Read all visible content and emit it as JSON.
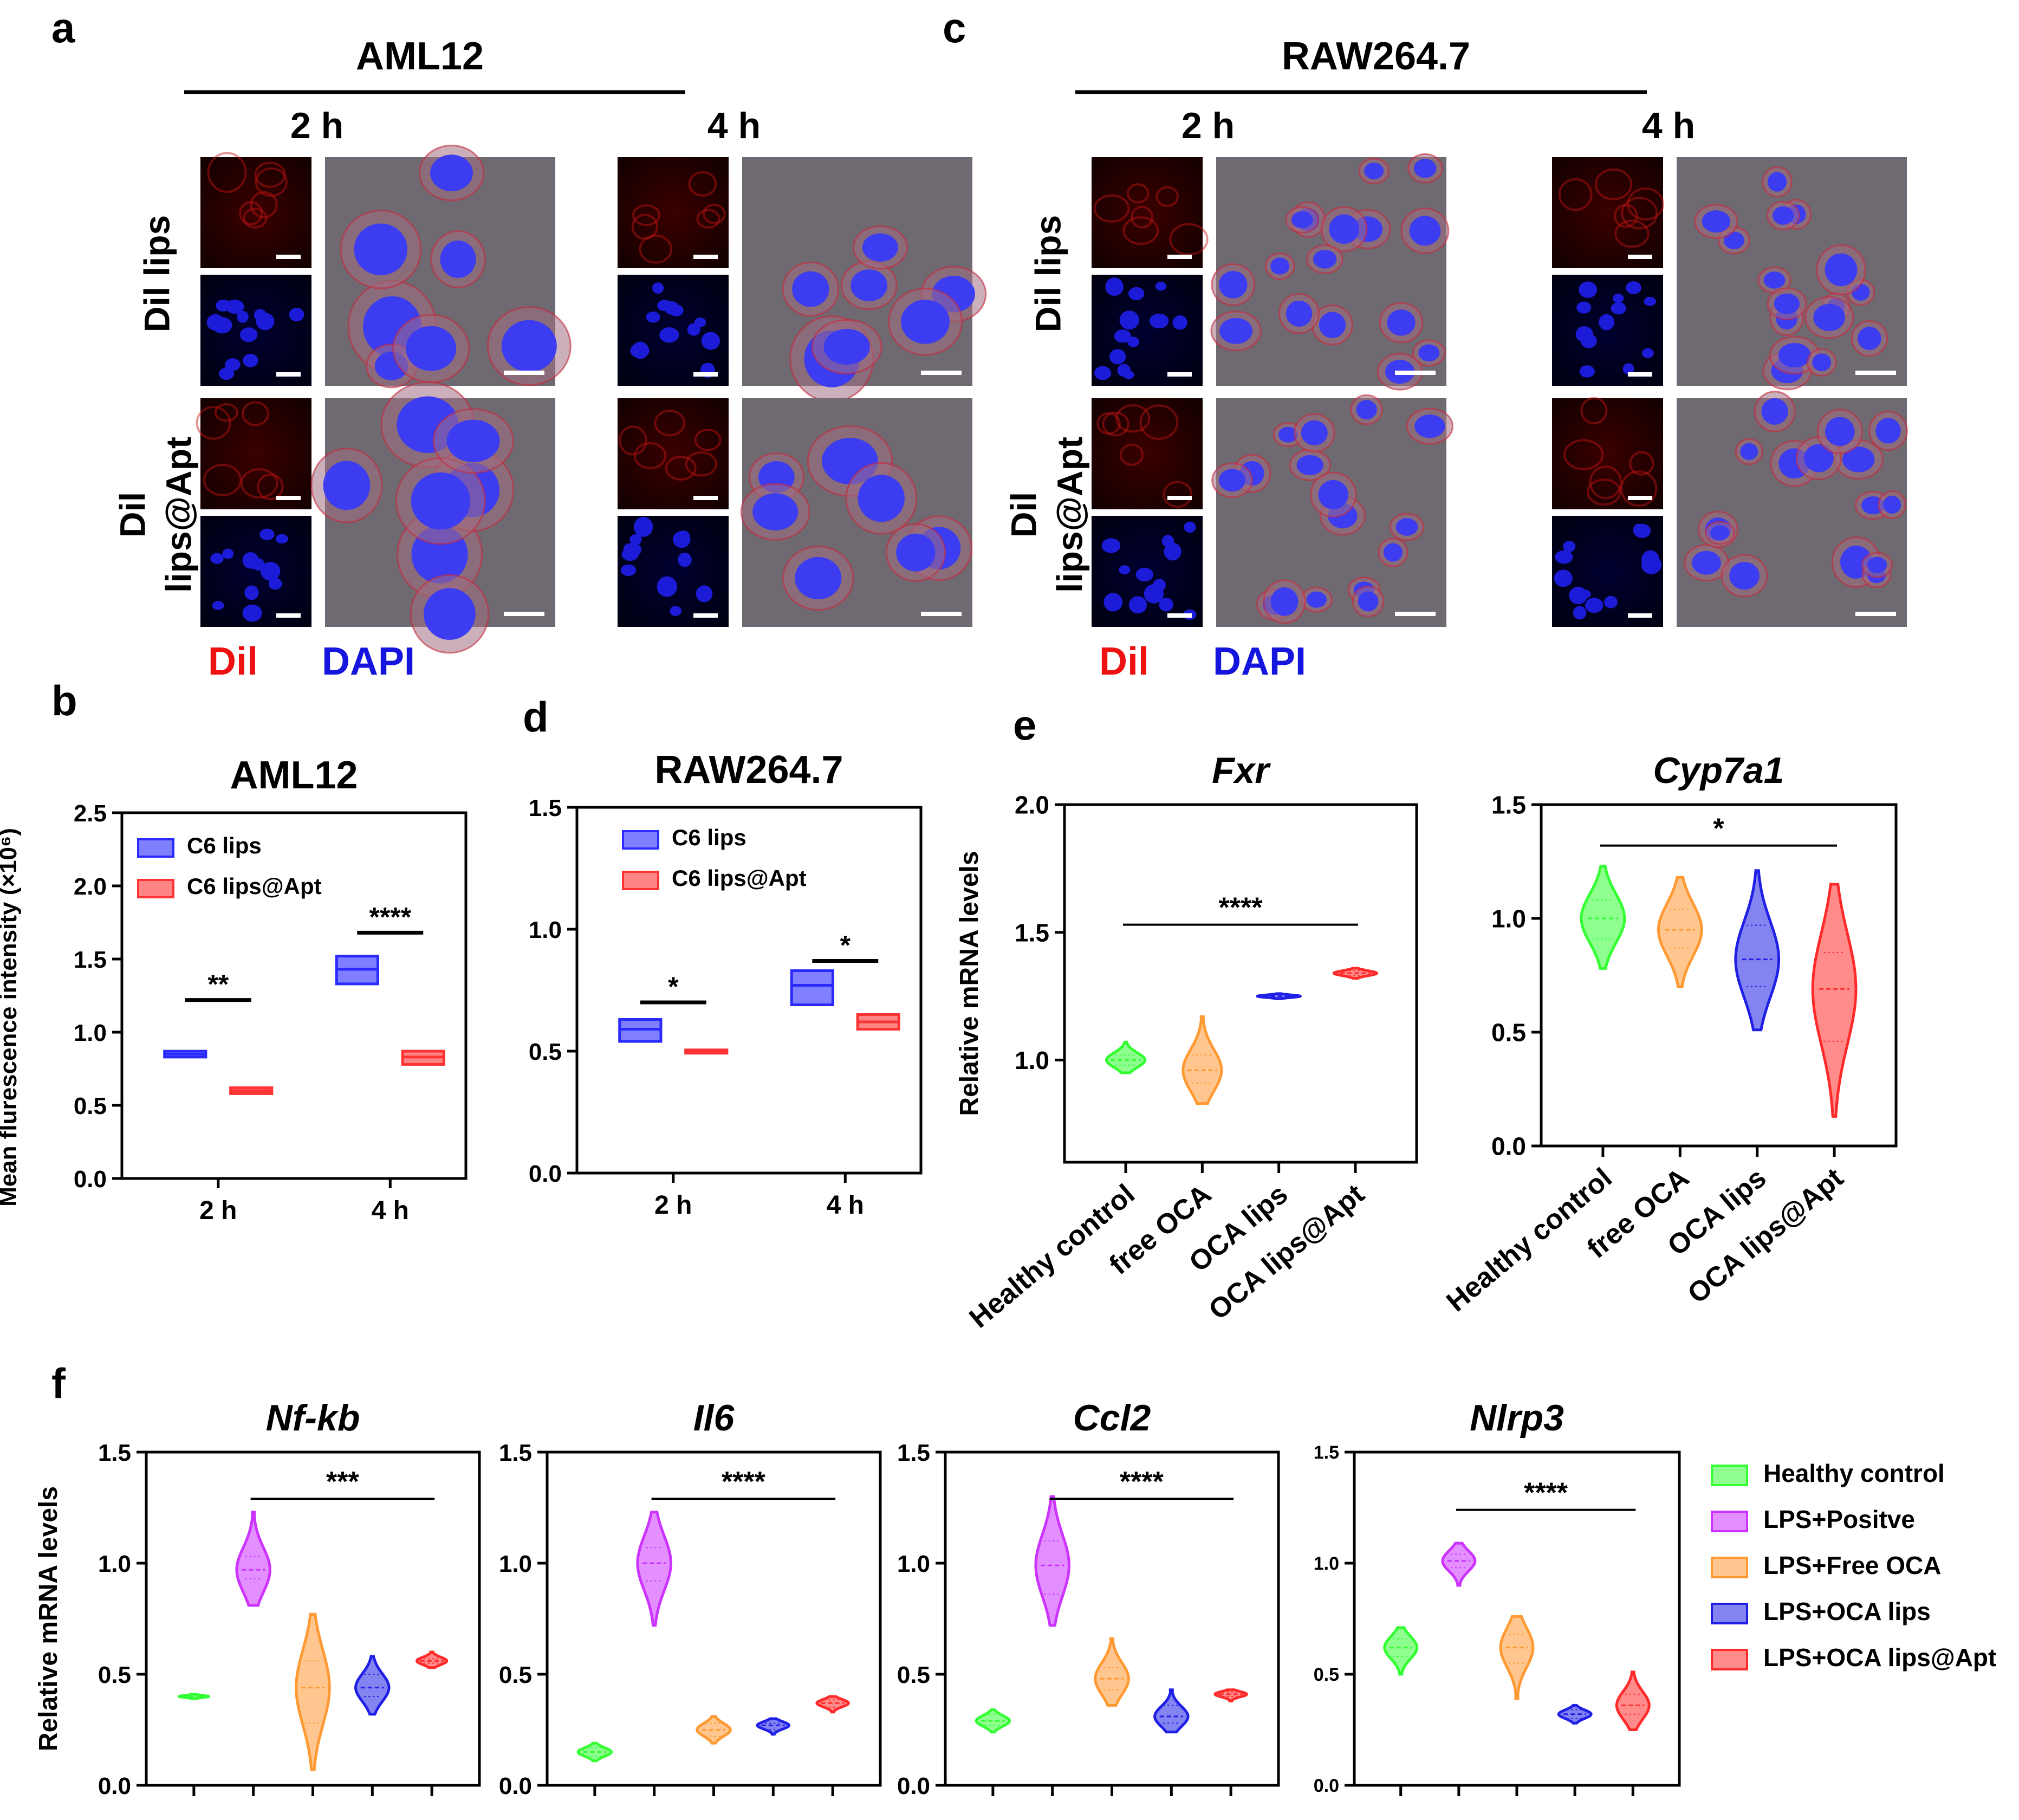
{
  "panels_letters": [
    "a",
    "b",
    "c",
    "d",
    "e",
    "f"
  ],
  "imaging": [
    {
      "letter": "a",
      "cell_line": "AML12",
      "time_labels": [
        "2 h",
        "4 h"
      ],
      "row_labels": [
        [
          "Dil lips"
        ],
        [
          "Dil",
          "lips@Apt"
        ]
      ],
      "legend": {
        "red": "Dil",
        "blue": "DAPI"
      }
    },
    {
      "letter": "c",
      "cell_line": "RAW264.7",
      "time_labels": [
        "2 h",
        "4 h"
      ],
      "row_labels": [
        [
          "Dil lips"
        ],
        [
          "Dil",
          "lips@Apt"
        ]
      ],
      "legend": {
        "red": "Dil",
        "blue": "DAPI"
      }
    }
  ],
  "colors": {
    "green": "#33ff33",
    "purple": "#cc33ff",
    "orange": "#ff9933",
    "blue": "#1f1fe6",
    "red": "#ff2b2b",
    "bar_blue": "#2a2aff",
    "bar_red": "#ff3333"
  },
  "chart_data": [
    {
      "id": "b",
      "type": "box",
      "title": "AML12",
      "ylabel": "Mean flurescence intensity (×10⁶)",
      "categories": [
        "2 h",
        "4 h"
      ],
      "ylim": [
        0,
        2.5
      ],
      "yticks": [
        "0.0",
        "0.5",
        "1.0",
        "1.5",
        "2.0",
        "2.5"
      ],
      "series": [
        {
          "name": "C6 lips",
          "color": "blue",
          "boxes": [
            {
              "q1": 0.83,
              "median": 0.85,
              "q3": 0.87
            },
            {
              "q1": 1.33,
              "median": 1.43,
              "q3": 1.52
            }
          ]
        },
        {
          "name": "C6 lips@Apt",
          "color": "red",
          "boxes": [
            {
              "q1": 0.58,
              "median": 0.6,
              "q3": 0.62
            },
            {
              "q1": 0.78,
              "median": 0.83,
              "q3": 0.87
            }
          ]
        }
      ],
      "significance": [
        {
          "label": "**",
          "y": 1.22,
          "from": [
            0,
            0
          ],
          "to": [
            0,
            1
          ]
        },
        {
          "label": "****",
          "y": 1.68,
          "from": [
            1,
            0
          ],
          "to": [
            1,
            1
          ]
        }
      ]
    },
    {
      "id": "d",
      "type": "box",
      "title": "RAW264.7",
      "ylabel": "",
      "categories": [
        "2 h",
        "4 h"
      ],
      "ylim": [
        0,
        1.5
      ],
      "yticks": [
        "0.0",
        "0.5",
        "1.0",
        "1.5"
      ],
      "series": [
        {
          "name": "C6 lips",
          "color": "blue",
          "boxes": [
            {
              "q1": 0.54,
              "median": 0.59,
              "q3": 0.63
            },
            {
              "q1": 0.69,
              "median": 0.77,
              "q3": 0.83
            }
          ]
        },
        {
          "name": "C6 lips@Apt",
          "color": "red",
          "boxes": [
            {
              "q1": 0.495,
              "median": 0.5,
              "q3": 0.505
            },
            {
              "q1": 0.59,
              "median": 0.62,
              "q3": 0.65
            }
          ]
        }
      ],
      "significance": [
        {
          "label": "*",
          "y": 0.7,
          "from": [
            0,
            0
          ],
          "to": [
            0,
            1
          ]
        },
        {
          "label": "*",
          "y": 0.87,
          "from": [
            1,
            0
          ],
          "to": [
            1,
            1
          ]
        }
      ]
    },
    {
      "id": "e1",
      "type": "violin",
      "title": "Fxr",
      "ylabel": "Relative  mRNA levels",
      "categories": [
        "Healthy control",
        "free OCA",
        "OCA lips",
        "OCA lips@Apt"
      ],
      "colors": [
        "green",
        "orange",
        "blue",
        "red"
      ],
      "ylim": [
        0.6,
        2.0
      ],
      "yticks": [
        "1.0",
        "1.5",
        "2.0"
      ],
      "ytick_values": [
        1.0,
        1.5,
        2.0
      ],
      "violins": [
        {
          "median": 1.0,
          "min": 0.95,
          "max": 1.07,
          "width": 0.9,
          "q1": 0.98,
          "q3": 1.02
        },
        {
          "median": 0.96,
          "min": 0.83,
          "max": 1.17,
          "width": 0.9,
          "q1": 0.91,
          "q3": 1.02
        },
        {
          "median": 1.25,
          "min": 1.24,
          "max": 1.26,
          "width": 1.0,
          "q1": 1.245,
          "q3": 1.255
        },
        {
          "median": 1.34,
          "min": 1.32,
          "max": 1.36,
          "width": 1.0,
          "q1": 1.33,
          "q3": 1.35
        }
      ],
      "significance": [
        {
          "label": "****",
          "y": 1.53,
          "from": 0,
          "to": 3
        }
      ]
    },
    {
      "id": "e2",
      "type": "violin",
      "title": "Cyp7a1",
      "ylabel": "",
      "categories": [
        "Healthy control",
        "free OCA",
        "OCA lips",
        "OCA lips@Apt"
      ],
      "colors": [
        "green",
        "orange",
        "blue",
        "red"
      ],
      "ylim": [
        0.0,
        1.5
      ],
      "yticks": [
        "0.0",
        "0.5",
        "1.0",
        "1.5"
      ],
      "ytick_values": [
        0.0,
        0.5,
        1.0,
        1.5
      ],
      "violins": [
        {
          "median": 1.0,
          "min": 0.78,
          "max": 1.23,
          "width": 1.0,
          "q1": 0.91,
          "q3": 1.08
        },
        {
          "median": 0.95,
          "min": 0.7,
          "max": 1.18,
          "width": 1.0,
          "q1": 0.87,
          "q3": 1.04
        },
        {
          "median": 0.82,
          "min": 0.51,
          "max": 1.21,
          "width": 1.0,
          "q1": 0.7,
          "q3": 0.97
        },
        {
          "median": 0.69,
          "min": 0.13,
          "max": 1.15,
          "width": 1.0,
          "q1": 0.46,
          "q3": 0.85
        }
      ],
      "significance": [
        {
          "label": "*",
          "y": 1.32,
          "from": 0,
          "to": 3
        }
      ]
    },
    {
      "id": "f1",
      "type": "violin",
      "title": "Nf-kb",
      "ylabel": "Relative  mRNA levels",
      "colors": [
        "green",
        "purple",
        "orange",
        "blue",
        "red"
      ],
      "ylim": [
        0.0,
        1.5
      ],
      "yticks": [
        "0.0",
        "0.5",
        "1.0",
        "1.5"
      ],
      "ytick_values": [
        0.0,
        0.5,
        1.0,
        1.5
      ],
      "violins": [
        {
          "median": 0.4,
          "min": 0.39,
          "max": 0.41,
          "width": 0.9,
          "q1": 0.395,
          "q3": 0.405
        },
        {
          "median": 0.97,
          "min": 0.81,
          "max": 1.23,
          "width": 1.0,
          "q1": 0.93,
          "q3": 1.03
        },
        {
          "median": 0.44,
          "min": 0.07,
          "max": 0.77,
          "width": 1.0,
          "q1": 0.28,
          "q3": 0.56
        },
        {
          "median": 0.44,
          "min": 0.32,
          "max": 0.58,
          "width": 1.0,
          "q1": 0.4,
          "q3": 0.5
        },
        {
          "median": 0.56,
          "min": 0.53,
          "max": 0.6,
          "width": 0.9,
          "q1": 0.55,
          "q3": 0.57
        }
      ],
      "significance": [
        {
          "label": "***",
          "y": 1.29,
          "from": 1,
          "to": 4
        }
      ]
    },
    {
      "id": "f2",
      "type": "violin",
      "title": "Il6",
      "ylabel": "",
      "colors": [
        "green",
        "purple",
        "orange",
        "blue",
        "red"
      ],
      "ylim": [
        0.0,
        1.5
      ],
      "yticks": [
        "0.0",
        "0.5",
        "1.0",
        "1.5"
      ],
      "ytick_values": [
        0.0,
        0.5,
        1.0,
        1.5
      ],
      "violins": [
        {
          "median": 0.15,
          "min": 0.11,
          "max": 0.19,
          "width": 1.0,
          "q1": 0.13,
          "q3": 0.17
        },
        {
          "median": 1.0,
          "min": 0.72,
          "max": 1.23,
          "width": 1.0,
          "q1": 0.92,
          "q3": 1.07
        },
        {
          "median": 0.25,
          "min": 0.19,
          "max": 0.31,
          "width": 1.0,
          "q1": 0.22,
          "q3": 0.28
        },
        {
          "median": 0.27,
          "min": 0.23,
          "max": 0.3,
          "width": 0.95,
          "q1": 0.25,
          "q3": 0.28
        },
        {
          "median": 0.37,
          "min": 0.33,
          "max": 0.4,
          "width": 0.95,
          "q1": 0.35,
          "q3": 0.385
        }
      ],
      "significance": [
        {
          "label": "****",
          "y": 1.29,
          "from": 1,
          "to": 4
        }
      ]
    },
    {
      "id": "f3",
      "type": "violin",
      "title": "Ccl2",
      "ylabel": "",
      "colors": [
        "green",
        "purple",
        "orange",
        "blue",
        "red"
      ],
      "ylim": [
        0.0,
        1.5
      ],
      "yticks": [
        "0.0",
        "0.5",
        "1.0",
        "1.5"
      ],
      "ytick_values": [
        0.0,
        0.5,
        1.0,
        1.5
      ],
      "violins": [
        {
          "median": 0.29,
          "min": 0.24,
          "max": 0.34,
          "width": 1.0,
          "q1": 0.27,
          "q3": 0.32
        },
        {
          "median": 0.99,
          "min": 0.72,
          "max": 1.3,
          "width": 1.0,
          "q1": 0.86,
          "q3": 1.1
        },
        {
          "median": 0.48,
          "min": 0.36,
          "max": 0.66,
          "width": 1.0,
          "q1": 0.43,
          "q3": 0.53
        },
        {
          "median": 0.31,
          "min": 0.24,
          "max": 0.43,
          "width": 1.0,
          "q1": 0.28,
          "q3": 0.36
        },
        {
          "median": 0.41,
          "min": 0.38,
          "max": 0.43,
          "width": 0.95,
          "q1": 0.4,
          "q3": 0.42
        }
      ],
      "significance": [
        {
          "label": "****",
          "y": 1.29,
          "from": 1,
          "to": 4
        }
      ]
    },
    {
      "id": "f4",
      "type": "violin",
      "title": "Nlrp3",
      "ylabel": "",
      "colors": [
        "green",
        "purple",
        "orange",
        "blue",
        "red"
      ],
      "ylim": [
        0.0,
        1.5
      ],
      "yticks": [
        "0.0",
        "0.5",
        "1.0",
        "1.5"
      ],
      "ytick_values": [
        0.0,
        0.5,
        1.0,
        1.5
      ],
      "violins": [
        {
          "median": 0.62,
          "min": 0.5,
          "max": 0.71,
          "width": 1.0,
          "q1": 0.58,
          "q3": 0.66
        },
        {
          "median": 1.01,
          "min": 0.9,
          "max": 1.09,
          "width": 1.0,
          "q1": 0.98,
          "q3": 1.04
        },
        {
          "median": 0.62,
          "min": 0.39,
          "max": 0.76,
          "width": 1.0,
          "q1": 0.55,
          "q3": 0.68
        },
        {
          "median": 0.32,
          "min": 0.28,
          "max": 0.36,
          "width": 1.0,
          "q1": 0.3,
          "q3": 0.34
        },
        {
          "median": 0.36,
          "min": 0.25,
          "max": 0.51,
          "width": 1.0,
          "q1": 0.32,
          "q3": 0.41
        }
      ],
      "significance": [
        {
          "label": "****",
          "y": 1.24,
          "from": 1,
          "to": 4
        }
      ]
    }
  ],
  "legend_f": [
    {
      "name": "Healthy control",
      "color": "green"
    },
    {
      "name": "LPS+Positve",
      "color": "purple"
    },
    {
      "name": "LPS+Free OCA",
      "color": "orange"
    },
    {
      "name": "LPS+OCA lips",
      "color": "blue"
    },
    {
      "name": "LPS+OCA lips@Apt",
      "color": "red"
    }
  ]
}
